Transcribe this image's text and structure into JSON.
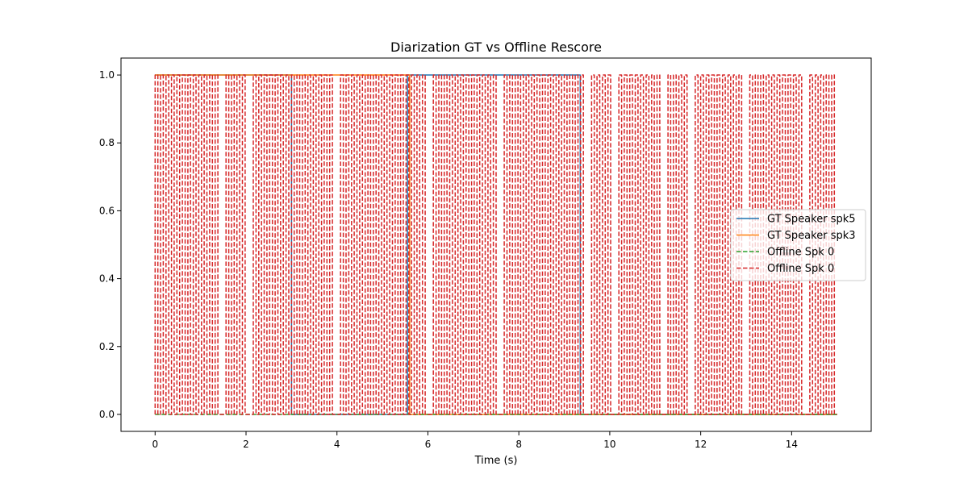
{
  "chart_data": {
    "type": "line",
    "title": "Diarization GT vs Offline Rescore",
    "xlabel": "Time (s)",
    "ylabel": "",
    "xlim": [
      -0.75,
      15.75
    ],
    "ylim": [
      -0.05,
      1.05
    ],
    "x_ticks": [
      0,
      2,
      4,
      6,
      8,
      10,
      12,
      14
    ],
    "y_ticks": [
      0.0,
      0.2,
      0.4,
      0.6,
      0.8,
      1.0
    ],
    "x_tick_labels": [
      "0",
      "2",
      "4",
      "6",
      "8",
      "10",
      "12",
      "14"
    ],
    "y_tick_labels": [
      "0.0",
      "0.2",
      "0.4",
      "0.6",
      "0.8",
      "1.0"
    ],
    "grid": false,
    "legend_position": "center-right",
    "series": [
      {
        "name": "GT Speaker spk5",
        "color": "#1f77b4",
        "style": "solid",
        "x": [
          0,
          3.0,
          3.0,
          5.55,
          5.55,
          9.35,
          9.35,
          15
        ],
        "y": [
          1,
          1,
          0,
          0,
          1,
          1,
          0,
          0
        ]
      },
      {
        "name": "GT Speaker spk3",
        "color": "#ff7f0e",
        "style": "solid",
        "x": [
          0,
          3.0,
          3.0,
          5.6,
          5.6,
          15
        ],
        "y": [
          1,
          1,
          1,
          1,
          0,
          0
        ]
      },
      {
        "name": "Offline Spk 0",
        "color": "#2ca02c",
        "style": "dashed",
        "x": [
          0,
          15
        ],
        "y": [
          0,
          0
        ]
      },
      {
        "name": "Offline Spk 0",
        "color": "#d62728",
        "style": "dashed",
        "time_range": [
          0,
          15
        ],
        "segment_step": 0.06,
        "gaps": [
          1.2,
          1.5,
          2.1,
          3.0,
          3.6,
          4.0,
          5.0,
          5.5,
          6.0,
          6.2,
          7.6,
          7.9,
          8.6,
          9.35,
          9.5,
          10.1,
          11.2,
          11.8,
          12.2,
          13.0,
          14.3
        ]
      }
    ]
  }
}
